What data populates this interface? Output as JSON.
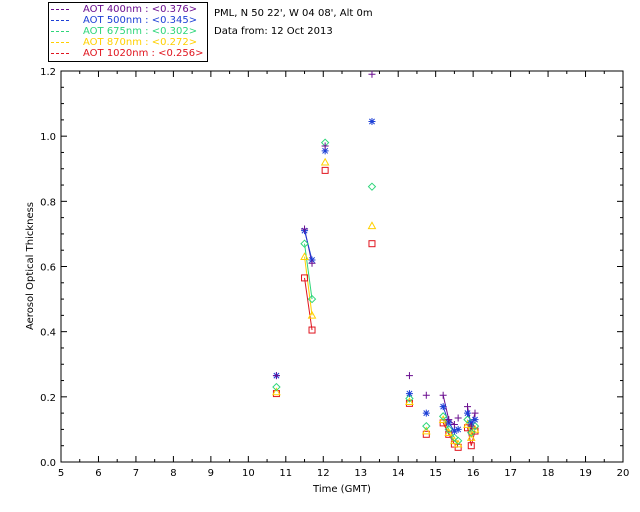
{
  "header": {
    "site": "PML, N 50 22', W 04 08', Alt 0m",
    "date": "Data from: 12 Oct 2013"
  },
  "legend": [
    {
      "label": "AOT  400nm : <0.376>",
      "color": "#6a0d8f"
    },
    {
      "label": "AOT  500nm : <0.345>",
      "color": "#1c3fd6"
    },
    {
      "label": "AOT  675nm : <0.302>",
      "color": "#2ed67a"
    },
    {
      "label": "AOT  870nm : <0.272>",
      "color": "#ffd000"
    },
    {
      "label": "AOT 1020nm : <0.256>",
      "color": "#e0141e"
    }
  ],
  "chart_data": {
    "type": "scatter",
    "title": "",
    "xlabel": "Time (GMT)",
    "ylabel": "Aerosol Optical Thickness",
    "xlim": [
      5,
      20
    ],
    "ylim": [
      0.0,
      1.2
    ],
    "xticks": [
      "5",
      "6",
      "7",
      "8",
      "9",
      "10",
      "11",
      "12",
      "13",
      "14",
      "15",
      "16",
      "17",
      "18",
      "19",
      "20"
    ],
    "yticks": [
      "0.0",
      "0.2",
      "0.4",
      "0.6",
      "0.8",
      "1.0",
      "1.2"
    ],
    "series": [
      {
        "name": "AOT 400nm",
        "marker": "plus",
        "color": "#6a0d8f",
        "x": [
          10.75,
          11.5,
          11.7,
          12.05,
          13.3,
          14.3,
          14.75,
          15.2,
          15.35,
          15.5,
          15.6,
          15.85,
          15.95,
          16.05
        ],
        "y": [
          0.265,
          0.715,
          0.61,
          0.97,
          1.19,
          0.265,
          0.205,
          0.205,
          0.13,
          0.115,
          0.135,
          0.17,
          0.11,
          0.15
        ]
      },
      {
        "name": "AOT 500nm",
        "marker": "asterisk",
        "color": "#1c3fd6",
        "x": [
          10.75,
          11.5,
          11.7,
          12.05,
          13.3,
          14.3,
          14.75,
          15.2,
          15.35,
          15.5,
          15.6,
          15.85,
          15.95,
          16.05
        ],
        "y": [
          0.265,
          0.71,
          0.62,
          0.955,
          1.045,
          0.21,
          0.15,
          0.17,
          0.12,
          0.095,
          0.1,
          0.15,
          0.12,
          0.13
        ]
      },
      {
        "name": "AOT 675nm",
        "marker": "diamond",
        "color": "#2ed67a",
        "x": [
          10.75,
          11.5,
          11.7,
          12.05,
          13.3,
          14.3,
          14.75,
          15.2,
          15.35,
          15.5,
          15.6,
          15.85,
          15.95,
          16.05
        ],
        "y": [
          0.23,
          0.67,
          0.5,
          0.98,
          0.845,
          0.195,
          0.11,
          0.14,
          0.1,
          0.075,
          0.065,
          0.13,
          0.09,
          0.11
        ]
      },
      {
        "name": "AOT 870nm",
        "marker": "triangle",
        "color": "#ffd000",
        "x": [
          10.75,
          11.5,
          11.7,
          12.05,
          13.3,
          14.3,
          14.75,
          15.2,
          15.35,
          15.5,
          15.6,
          15.85,
          15.95,
          16.05
        ],
        "y": [
          0.215,
          0.63,
          0.45,
          0.92,
          0.725,
          0.185,
          0.095,
          0.13,
          0.09,
          0.065,
          0.055,
          0.115,
          0.075,
          0.1
        ]
      },
      {
        "name": "AOT 1020nm",
        "marker": "square",
        "color": "#e0141e",
        "x": [
          10.75,
          11.5,
          11.7,
          12.05,
          13.3,
          14.3,
          14.75,
          15.2,
          15.35,
          15.5,
          15.6,
          15.85,
          15.95,
          16.05
        ],
        "y": [
          0.21,
          0.565,
          0.405,
          0.895,
          0.67,
          0.18,
          0.085,
          0.12,
          0.085,
          0.055,
          0.045,
          0.105,
          0.05,
          0.095
        ]
      }
    ],
    "connected_segments": [
      [
        1,
        2
      ],
      [
        7,
        8
      ],
      [
        8,
        9
      ],
      [
        11,
        12
      ],
      [
        12,
        13
      ]
    ]
  }
}
